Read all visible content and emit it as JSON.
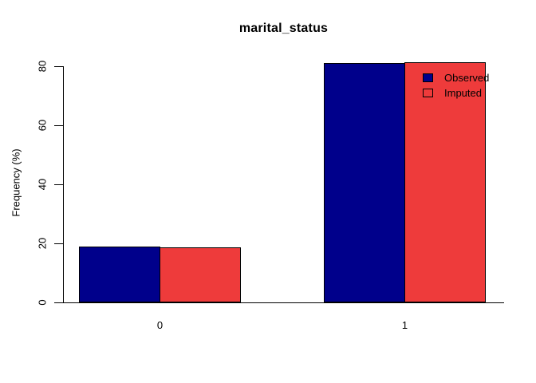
{
  "chart_data": {
    "type": "bar",
    "title": "marital_status",
    "ylabel": "Frequency (%)",
    "xlabel": "",
    "categories": [
      "0",
      "1"
    ],
    "series": [
      {
        "name": "Observed",
        "values": [
          19,
          81
        ],
        "color": "#00008B"
      },
      {
        "name": "Imputed",
        "values": [
          18.6,
          81.4
        ],
        "color": "#EE3B3B"
      }
    ],
    "yticks": [
      0,
      20,
      40,
      60,
      80
    ],
    "ylim": [
      0,
      80
    ],
    "grid": false,
    "legend_position": "inside-top-right",
    "legend_entries": [
      "Observed",
      "Imputed"
    ],
    "bar_border_color": "#000000",
    "axis_color": "#000000",
    "background_color": "#FFFFFF"
  }
}
